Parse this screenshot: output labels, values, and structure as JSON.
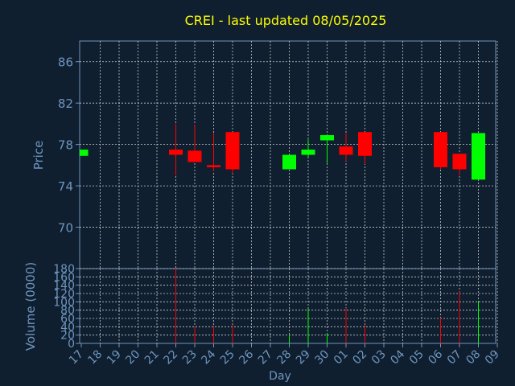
{
  "chart_data": {
    "type": "candlestick",
    "title": "CREI - last updated 08/05/2025",
    "xlabel": "Day",
    "price_panel": {
      "ylabel": "Price",
      "ylim": [
        66,
        88
      ],
      "yticks": [
        70,
        74,
        78,
        82,
        86
      ],
      "grid": true
    },
    "volume_panel": {
      "ylabel": "Volume (0000)",
      "ylim": [
        0,
        180
      ],
      "yticks": [
        0,
        20,
        40,
        60,
        80,
        100,
        120,
        140,
        160,
        180
      ],
      "grid": true
    },
    "dates": [
      "17",
      "18",
      "19",
      "20",
      "21",
      "22",
      "23",
      "24",
      "25",
      "26",
      "27",
      "28",
      "29",
      "30",
      "01",
      "02",
      "03",
      "04",
      "05",
      "06",
      "07",
      "08",
      "09"
    ],
    "candles": [
      {
        "day": "17",
        "open": 76.9,
        "close": 77.5,
        "high": 77.5,
        "low": 76.9,
        "volume": 0
      },
      {
        "day": "22",
        "open": 77.5,
        "close": 77.0,
        "high": 80.0,
        "low": 75.0,
        "volume": 185
      },
      {
        "day": "23",
        "open": 77.4,
        "close": 76.3,
        "high": 79.9,
        "low": 76.3,
        "volume": 40
      },
      {
        "day": "24",
        "open": 76.0,
        "close": 75.8,
        "high": 79.1,
        "low": 75.4,
        "volume": 42
      },
      {
        "day": "25",
        "open": 79.2,
        "close": 75.6,
        "high": 79.2,
        "low": 75.2,
        "volume": 45
      },
      {
        "day": "28",
        "open": 75.6,
        "close": 77.0,
        "high": 77.0,
        "low": 75.6,
        "volume": 20
      },
      {
        "day": "29",
        "open": 77.0,
        "close": 77.5,
        "high": 78.5,
        "low": 76.8,
        "volume": 85
      },
      {
        "day": "30",
        "open": 78.4,
        "close": 78.9,
        "high": 78.9,
        "low": 76.2,
        "volume": 25
      },
      {
        "day": "01",
        "open": 77.8,
        "close": 77.0,
        "high": 79.1,
        "low": 76.4,
        "volume": 85
      },
      {
        "day": "02",
        "open": 79.2,
        "close": 76.9,
        "high": 79.2,
        "low": 76.1,
        "volume": 45
      },
      {
        "day": "06",
        "open": 79.2,
        "close": 75.8,
        "high": 79.2,
        "low": 75.6,
        "volume": 62
      },
      {
        "day": "07",
        "open": 77.1,
        "close": 75.6,
        "high": 77.1,
        "low": 75.0,
        "volume": 125
      },
      {
        "day": "08",
        "open": 74.6,
        "close": 79.1,
        "high": 79.1,
        "low": 74.6,
        "volume": 100
      }
    ],
    "colors": {
      "up": "#00ff00",
      "down": "#ff0000",
      "grid": "#c8c8c8",
      "axis": "#6f95bf",
      "title": "#ffff00",
      "background": "#0f1f2f"
    }
  }
}
